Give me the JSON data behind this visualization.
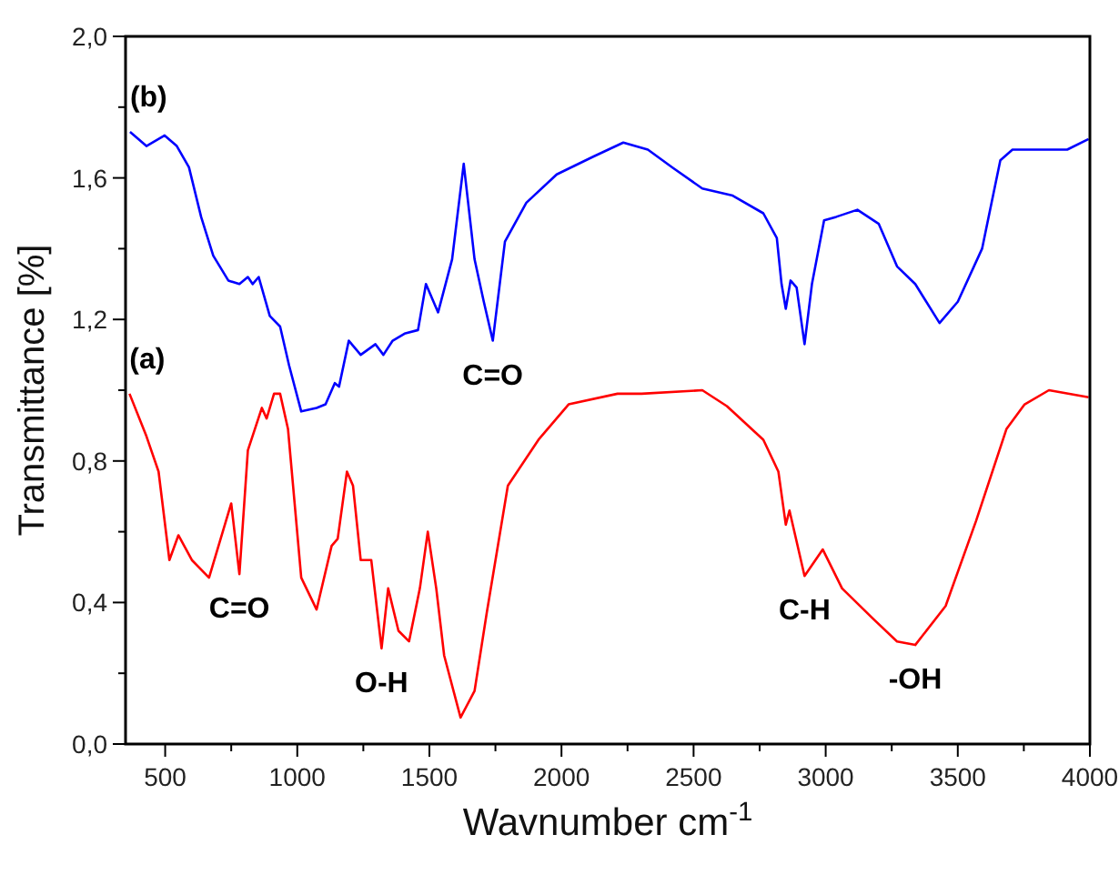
{
  "chart_data": {
    "type": "line",
    "xlabel": "Wavnumber cm$^{-1}$",
    "ylabel": "Transmittance [%]",
    "xlim": [
      350,
      4000
    ],
    "xticks": [
      500,
      {
        "value": 750,
        "label": null
      },
      1000,
      {
        "value": 1250,
        "label": null
      },
      1500,
      {
        "value": 1750,
        "label": null
      },
      2000,
      {
        "value": 2250,
        "label": null
      },
      2500,
      {
        "value": 2750,
        "label": null
      },
      3000,
      {
        "value": 3250,
        "label": null
      },
      3500,
      {
        "value": 3750,
        "label": null
      },
      4000
    ],
    "ylim": [
      0,
      2
    ],
    "yticks": [
      {
        "value": 0,
        "label": "0,0"
      },
      {
        "value": 0.2,
        "label": null
      },
      {
        "value": 0.4,
        "label": "0,4"
      },
      {
        "value": 0.6,
        "label": null
      },
      {
        "value": 0.8,
        "label": "0,8"
      },
      {
        "value": 1.0,
        "label": null
      },
      {
        "value": 1.2,
        "label": "1,2"
      },
      {
        "value": 1.4,
        "label": null
      },
      {
        "value": 1.6,
        "label": "1,6"
      },
      {
        "value": 1.8,
        "label": null
      },
      {
        "value": 2.0,
        "label": "2,0"
      }
    ],
    "grid": false,
    "marker": "none",
    "line_style": "solid",
    "series": [
      {
        "name": "(b)",
        "color": "#0000ff",
        "x": [
          367,
          429,
          498,
          544,
          590,
          636,
          682,
          739,
          781,
          813,
          831,
          854,
          896,
          935,
          969,
          1015,
          1073,
          1107,
          1142,
          1158,
          1195,
          1240,
          1296,
          1326,
          1361,
          1406,
          1457,
          1487,
          1533,
          1586,
          1630,
          1671,
          1706,
          1740,
          1786,
          1867,
          1982,
          2120,
          2234,
          2327,
          2419,
          2533,
          2648,
          2764,
          2815,
          2833,
          2849,
          2867,
          2890,
          2920,
          2948,
          2994,
          3040,
          3120,
          3201,
          3270,
          3339,
          3431,
          3500,
          3592,
          3661,
          3707,
          3799,
          3914,
          3995
        ],
        "values": [
          1.73,
          1.69,
          1.72,
          1.69,
          1.63,
          1.49,
          1.38,
          1.31,
          1.3,
          1.32,
          1.3,
          1.32,
          1.21,
          1.18,
          1.07,
          0.94,
          0.95,
          0.96,
          1.02,
          1.01,
          1.14,
          1.1,
          1.13,
          1.1,
          1.14,
          1.16,
          1.17,
          1.3,
          1.22,
          1.37,
          1.64,
          1.37,
          1.25,
          1.14,
          1.42,
          1.53,
          1.61,
          1.66,
          1.7,
          1.68,
          1.63,
          1.57,
          1.55,
          1.5,
          1.43,
          1.3,
          1.23,
          1.31,
          1.29,
          1.13,
          1.3,
          1.48,
          1.49,
          1.51,
          1.47,
          1.35,
          1.3,
          1.19,
          1.25,
          1.4,
          1.65,
          1.68,
          1.68,
          1.68,
          1.71
        ]
      },
      {
        "name": "(a)",
        "color": "#ff0000",
        "x": [
          365,
          429,
          475,
          516,
          550,
          601,
          666,
          750,
          781,
          813,
          866,
          884,
          912,
          935,
          965,
          1015,
          1073,
          1130,
          1153,
          1188,
          1211,
          1240,
          1280,
          1319,
          1344,
          1383,
          1423,
          1464,
          1494,
          1526,
          1556,
          1618,
          1671,
          1717,
          1797,
          1913,
          2027,
          2212,
          2303,
          2533,
          2626,
          2764,
          2821,
          2849,
          2863,
          2920,
          2989,
          3062,
          3178,
          3270,
          3339,
          3454,
          3569,
          3684,
          3753,
          3845,
          3995
        ],
        "values": [
          0.99,
          0.87,
          0.77,
          0.52,
          0.59,
          0.52,
          0.47,
          0.68,
          0.48,
          0.83,
          0.95,
          0.92,
          0.99,
          0.99,
          0.89,
          0.47,
          0.38,
          0.56,
          0.58,
          0.77,
          0.73,
          0.52,
          0.52,
          0.27,
          0.44,
          0.32,
          0.29,
          0.44,
          0.6,
          0.44,
          0.25,
          0.075,
          0.15,
          0.37,
          0.73,
          0.86,
          0.96,
          0.99,
          0.99,
          1.0,
          0.955,
          0.86,
          0.77,
          0.62,
          0.66,
          0.475,
          0.55,
          0.44,
          0.355,
          0.29,
          0.28,
          0.39,
          0.63,
          0.89,
          0.96,
          1.0,
          0.98
        ]
      }
    ],
    "annotations": [
      {
        "text": "C=O",
        "x": 781,
        "y": 0.48
      },
      {
        "text": "O-H",
        "x": 1319,
        "y": 0.27
      },
      {
        "text": "C=O",
        "x": 1740,
        "y": 1.14
      },
      {
        "text": "C-H",
        "x": 2920,
        "y": 0.475
      },
      {
        "text": "-OH",
        "x": 3339,
        "y": 0.28
      }
    ]
  }
}
